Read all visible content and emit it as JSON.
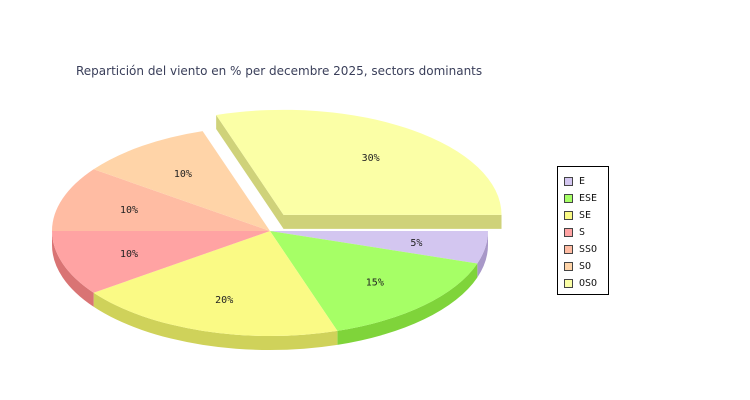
{
  "chart_data": {
    "type": "pie",
    "title": "Repartición del viento en % per decembre 2025, sectors dominants",
    "slices": [
      {
        "name": "E",
        "value": 5,
        "label": "5%",
        "color": "#d3c6f0",
        "side": "#a898c8"
      },
      {
        "name": "ESE",
        "value": 15,
        "label": "15%",
        "color": "#a6ff66",
        "side": "#7fd43a"
      },
      {
        "name": "SE",
        "value": 20,
        "label": "20%",
        "color": "#fafa85",
        "side": "#cfd25a"
      },
      {
        "name": "S",
        "value": 10,
        "label": "10%",
        "color": "#ffa3a3",
        "side": "#d97474"
      },
      {
        "name": "SSO",
        "value": 10,
        "label": "10%",
        "color": "#ffbca3",
        "side": "#d9937a"
      },
      {
        "name": "SO",
        "value": 10,
        "label": "10%",
        "color": "#ffd4a8",
        "side": "#d9ab7c"
      },
      {
        "name": "OSO",
        "value": 30,
        "label": "30%",
        "color": "#fbffa6",
        "side": "#cfd27a",
        "exploded": true
      }
    ],
    "legend_position": "right",
    "legend": [
      "E",
      "ESE",
      "SE",
      "S",
      "SSO",
      "SO",
      "OSO"
    ]
  }
}
